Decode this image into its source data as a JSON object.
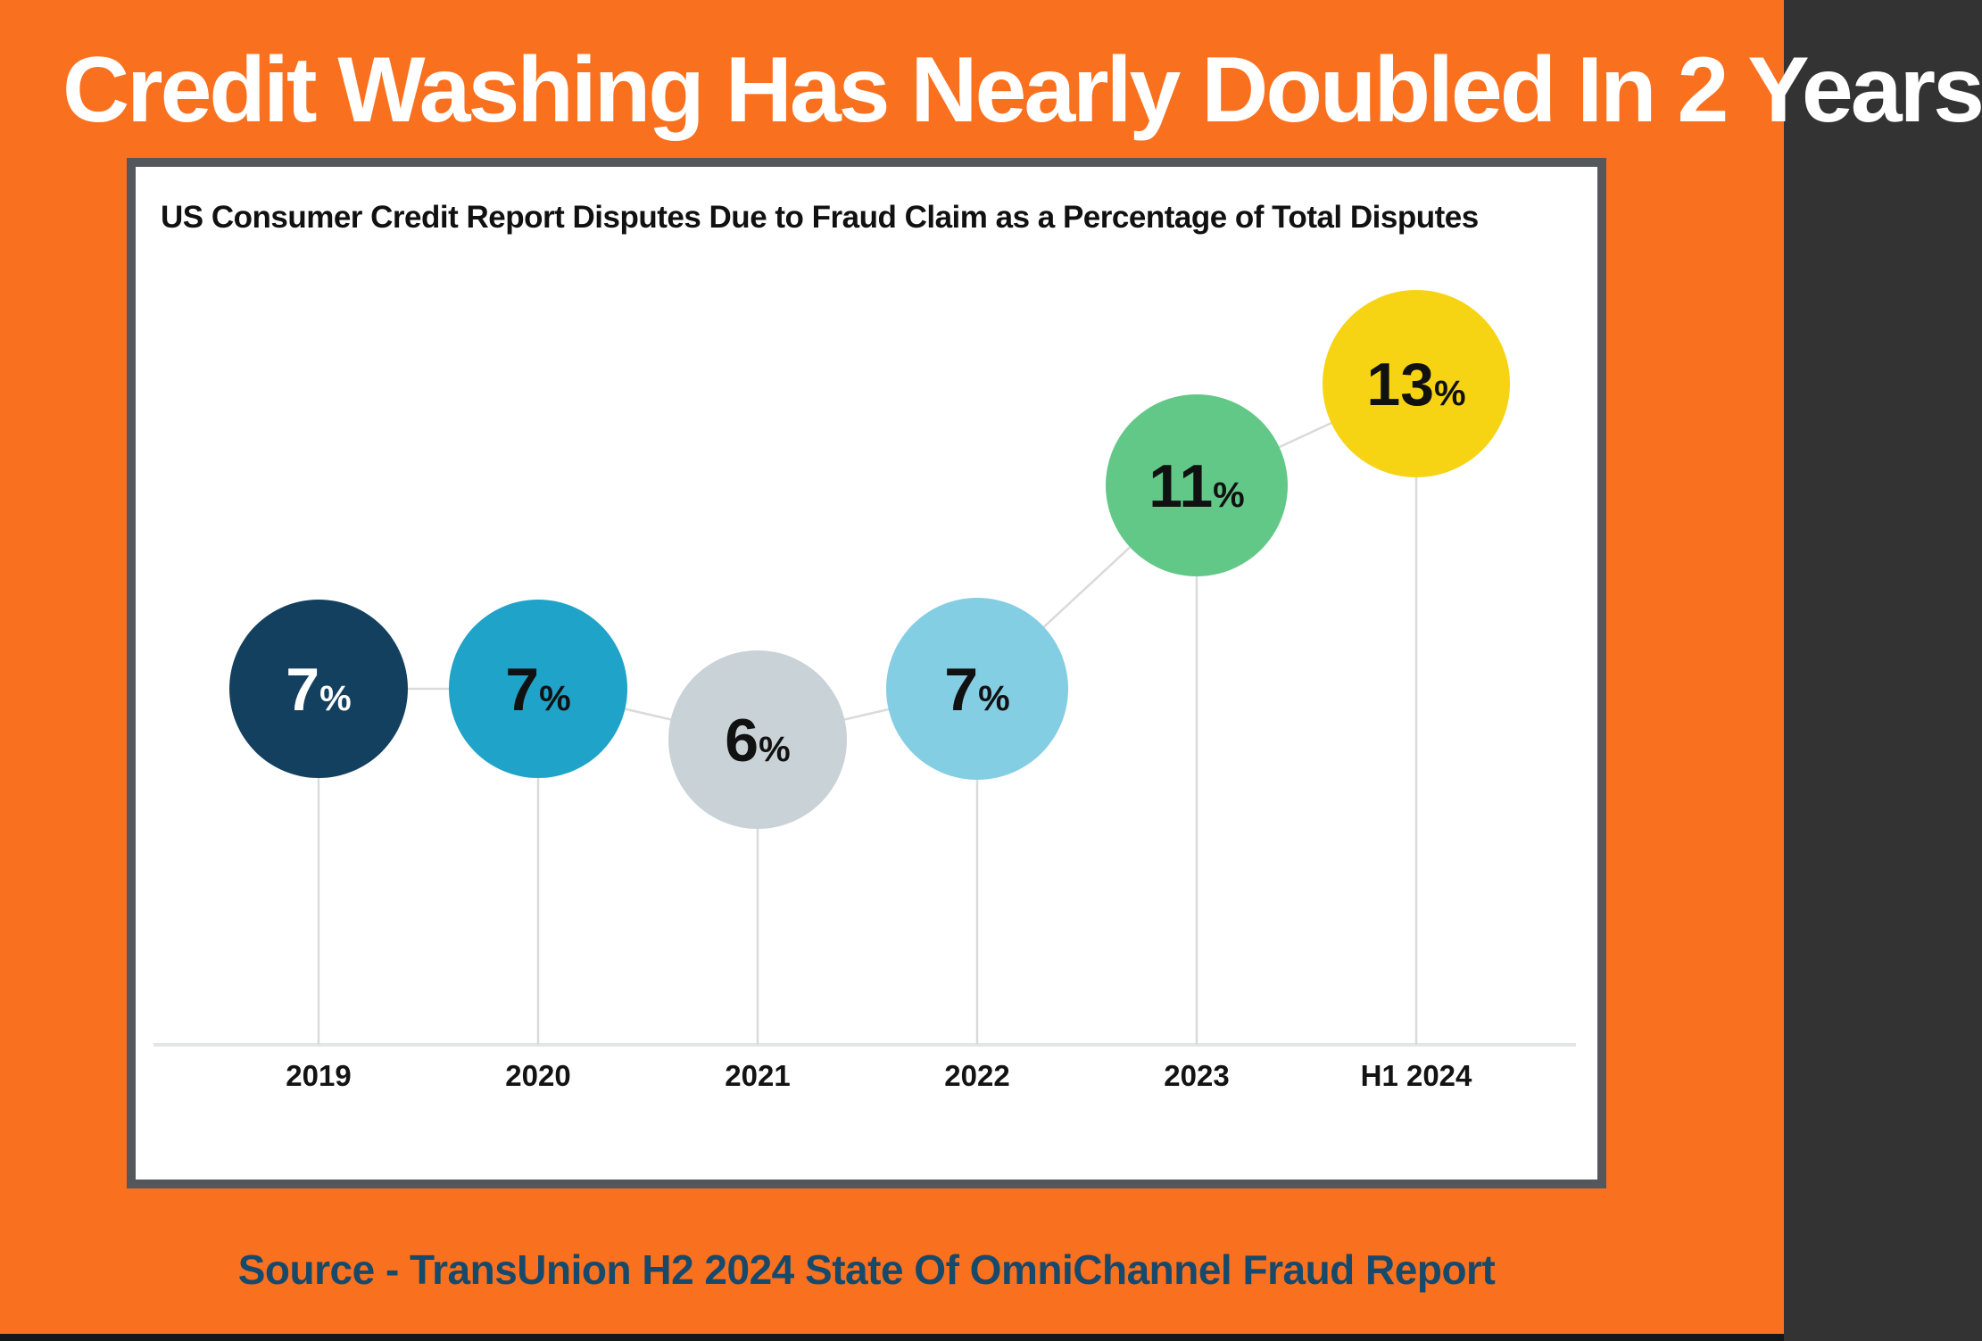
{
  "page": {
    "headline": "Credit Washing Has Nearly Doubled In 2 Years",
    "source_caption": "Source - TransUnion H2 2024 State Of OmniChannel Fraud Report"
  },
  "colors": {
    "background_orange": "#F9701E",
    "panel_border_gray": "#54585D",
    "panel_background": "#FFFFFF",
    "headline_text": "#FFFFFF",
    "subtitle_text": "#111111",
    "source_text": "#17496B",
    "bottom_bar": "#14171C",
    "connector_line": "#DADADA",
    "axis_line": "#E3E5E6"
  },
  "chart_data": {
    "type": "line",
    "subtype": "dot-lollipop",
    "title": "US Consumer Credit Report Disputes Due to Fraud Claim as a Percentage of Total Disputes",
    "categories": [
      "2019",
      "2020",
      "2021",
      "2022",
      "2023",
      "H1 2024"
    ],
    "values": [
      7,
      7,
      6,
      7,
      11,
      13
    ],
    "value_labels": [
      "7%",
      "7%",
      "6%",
      "7%",
      "11%",
      "13%"
    ],
    "unit": "%",
    "point_colors": [
      "#14405F",
      "#1FA3C8",
      "#C9D2D7",
      "#84CEE4",
      "#62C888",
      "#F6D414"
    ],
    "value_label_colors": [
      "#FFFFFF",
      "#111111",
      "#111111",
      "#111111",
      "#111111",
      "#111111"
    ],
    "xlabel": "",
    "ylabel": "",
    "ylim": [
      0,
      17
    ],
    "grid": false,
    "legend": false,
    "baseline_shown": true
  }
}
